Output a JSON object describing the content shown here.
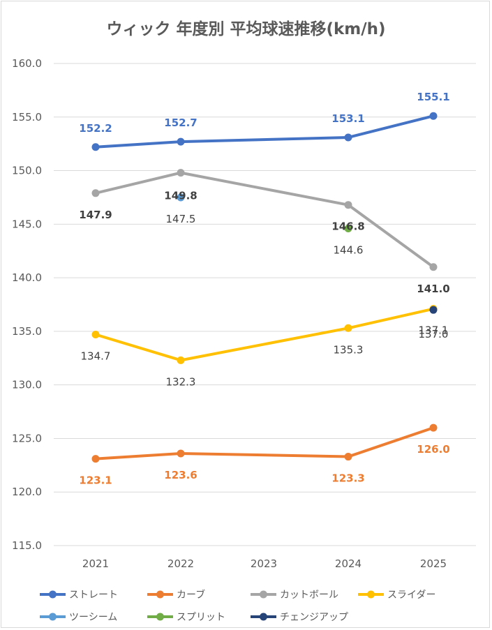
{
  "chart_data": {
    "type": "line",
    "title": "ウィック 年度別 平均球速推移(km/h)",
    "xlabel": "",
    "ylabel": "",
    "ylim": [
      115,
      160
    ],
    "y_ticks": [
      "115.0",
      "120.0",
      "125.0",
      "130.0",
      "135.0",
      "140.0",
      "145.0",
      "150.0",
      "155.0",
      "160.0"
    ],
    "categories": [
      "2021",
      "2022",
      "2023",
      "2024",
      "2025"
    ],
    "grid": true,
    "legend_position": "bottom",
    "series": [
      {
        "name": "ストレート",
        "color": "#4472c4",
        "values": [
          152.2,
          152.7,
          null,
          153.1,
          155.1
        ],
        "labels": [
          "152.2",
          "152.7",
          null,
          "153.1",
          "155.1"
        ]
      },
      {
        "name": "カーブ",
        "color": "#ed7d31",
        "values": [
          123.1,
          123.6,
          null,
          123.3,
          126.0
        ],
        "labels": [
          "123.1",
          "123.6",
          null,
          "123.3",
          "126.0"
        ]
      },
      {
        "name": "カットボール",
        "color": "#a5a5a5",
        "values": [
          147.9,
          149.8,
          null,
          146.8,
          141.0
        ],
        "labels": [
          "147.9",
          "149.8",
          null,
          "146.8",
          "141.0"
        ]
      },
      {
        "name": "スライダー",
        "color": "#ffc000",
        "values": [
          134.7,
          132.3,
          null,
          135.3,
          137.1
        ],
        "labels": [
          "134.7",
          "132.3",
          null,
          "135.3",
          "137.1"
        ]
      },
      {
        "name": "ツーシーム",
        "color": "#5b9bd5",
        "values": [
          null,
          147.5,
          null,
          null,
          null
        ],
        "labels": [
          null,
          "147.5",
          null,
          null,
          null
        ]
      },
      {
        "name": "スプリット",
        "color": "#70ad47",
        "values": [
          null,
          null,
          null,
          144.6,
          null
        ],
        "labels": [
          null,
          null,
          null,
          "144.6",
          null
        ]
      },
      {
        "name": "チェンジアップ",
        "color": "#264478",
        "values": [
          null,
          null,
          null,
          null,
          137.0
        ],
        "labels": [
          null,
          null,
          null,
          null,
          "137.0"
        ]
      }
    ]
  }
}
